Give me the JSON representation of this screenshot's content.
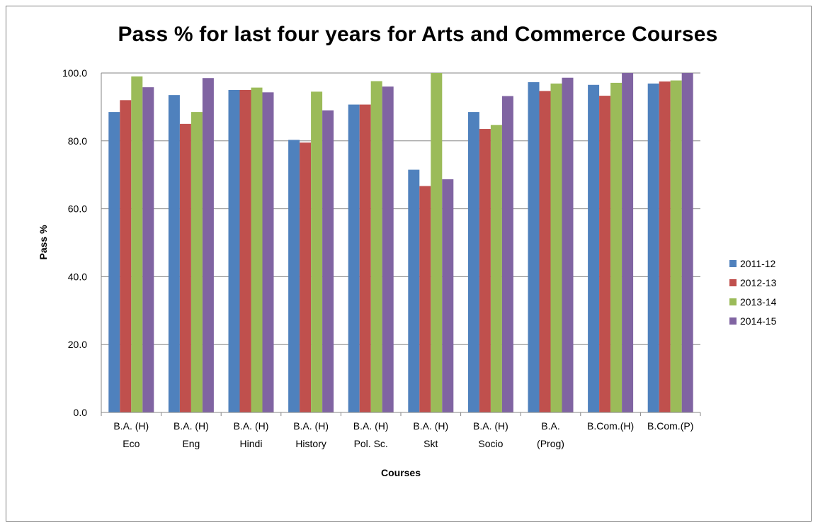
{
  "chart_data": {
    "type": "bar",
    "title": "Pass % for last four years for Arts and Commerce Courses",
    "xlabel": "Courses",
    "ylabel": "Pass %",
    "ylim": [
      0,
      100
    ],
    "yticks": [
      "0.0",
      "20.0",
      "40.0",
      "60.0",
      "80.0",
      "100.0"
    ],
    "ytick_values": [
      0,
      20,
      40,
      60,
      80,
      100
    ],
    "grid": true,
    "legend_position": "right",
    "categories": [
      [
        "B.A. (H)",
        "Eco"
      ],
      [
        "B.A. (H)",
        "Eng"
      ],
      [
        "B.A. (H)",
        "Hindi"
      ],
      [
        "B.A. (H)",
        "History"
      ],
      [
        "B.A. (H)",
        "Pol. Sc."
      ],
      [
        "B.A. (H)",
        "Skt"
      ],
      [
        "B.A. (H)",
        "Socio"
      ],
      [
        "B.A.",
        "(Prog)"
      ],
      [
        "B.Com.(H)"
      ],
      [
        "B.Com.(P)"
      ]
    ],
    "series": [
      {
        "name": "2011-12",
        "color": "#4f81bd",
        "values": [
          88.5,
          93.5,
          95.0,
          80.3,
          90.7,
          71.5,
          88.5,
          97.3,
          96.5,
          96.9
        ]
      },
      {
        "name": "2012-13",
        "color": "#c0504d",
        "values": [
          92.0,
          85.0,
          95.0,
          79.5,
          90.7,
          66.7,
          83.5,
          94.7,
          93.3,
          97.5
        ]
      },
      {
        "name": "2013-14",
        "color": "#9bbb59",
        "values": [
          99.0,
          88.5,
          95.7,
          94.5,
          97.6,
          100.0,
          84.7,
          96.9,
          97.1,
          97.8
        ]
      },
      {
        "name": "2014-15",
        "color": "#8064a2",
        "values": [
          95.8,
          98.5,
          94.3,
          89.0,
          96.0,
          68.7,
          93.2,
          98.6,
          100.0,
          100.0
        ]
      }
    ]
  }
}
